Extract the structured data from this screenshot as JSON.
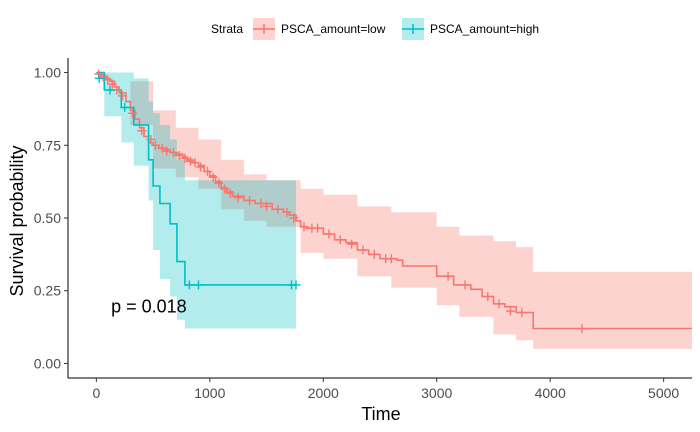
{
  "chart_data": {
    "type": "line",
    "subtype": "kaplan-meier",
    "title": "",
    "xlabel": "Time",
    "ylabel": "Survival probability",
    "xlim": [
      -250,
      5250
    ],
    "ylim": [
      -0.05,
      1.05
    ],
    "xticks": [
      0,
      1000,
      2000,
      3000,
      4000,
      5000
    ],
    "yticks": [
      0.0,
      0.25,
      0.5,
      0.75,
      1.0
    ],
    "ytick_labels": [
      "0.00",
      "0.25",
      "0.50",
      "0.75",
      "1.00"
    ],
    "grid": false,
    "legend": {
      "title": "Strata",
      "position": "top"
    },
    "annotations": [
      {
        "text": "p = 0.018",
        "x": 130,
        "y": 0.195
      }
    ],
    "series": [
      {
        "name": "PSCA_amount=low",
        "color": "#F8766D",
        "fill": "#F8766D",
        "fill_opacity": 0.32,
        "steps": [
          [
            0,
            1.0
          ],
          [
            40,
            0.99
          ],
          [
            80,
            0.98
          ],
          [
            120,
            0.97
          ],
          [
            160,
            0.95
          ],
          [
            200,
            0.93
          ],
          [
            260,
            0.9
          ],
          [
            300,
            0.87
          ],
          [
            340,
            0.84
          ],
          [
            380,
            0.81
          ],
          [
            420,
            0.78
          ],
          [
            460,
            0.76
          ],
          [
            500,
            0.75
          ],
          [
            550,
            0.74
          ],
          [
            600,
            0.735
          ],
          [
            650,
            0.725
          ],
          [
            700,
            0.72
          ],
          [
            760,
            0.71
          ],
          [
            800,
            0.7
          ],
          [
            850,
            0.69
          ],
          [
            900,
            0.68
          ],
          [
            950,
            0.66
          ],
          [
            1000,
            0.645
          ],
          [
            1050,
            0.625
          ],
          [
            1100,
            0.605
          ],
          [
            1150,
            0.59
          ],
          [
            1200,
            0.575
          ],
          [
            1300,
            0.56
          ],
          [
            1400,
            0.55
          ],
          [
            1550,
            0.53
          ],
          [
            1650,
            0.52
          ],
          [
            1700,
            0.51
          ],
          [
            1760,
            0.49
          ],
          [
            1800,
            0.47
          ],
          [
            1850,
            0.465
          ],
          [
            2000,
            0.445
          ],
          [
            2100,
            0.425
          ],
          [
            2200,
            0.415
          ],
          [
            2300,
            0.39
          ],
          [
            2400,
            0.375
          ],
          [
            2500,
            0.36
          ],
          [
            2650,
            0.355
          ],
          [
            2700,
            0.335
          ],
          [
            3000,
            0.3
          ],
          [
            3150,
            0.27
          ],
          [
            3300,
            0.255
          ],
          [
            3400,
            0.23
          ],
          [
            3500,
            0.205
          ],
          [
            3600,
            0.195
          ],
          [
            3700,
            0.175
          ],
          [
            3850,
            0.12
          ],
          [
            5250,
            0.12
          ]
        ],
        "upper": [
          [
            0,
            1.0
          ],
          [
            300,
            0.97
          ],
          [
            500,
            0.87
          ],
          [
            700,
            0.81
          ],
          [
            900,
            0.77
          ],
          [
            1100,
            0.7
          ],
          [
            1300,
            0.65
          ],
          [
            1500,
            0.63
          ],
          [
            1800,
            0.6
          ],
          [
            2000,
            0.58
          ],
          [
            2300,
            0.54
          ],
          [
            2600,
            0.52
          ],
          [
            3000,
            0.47
          ],
          [
            3200,
            0.44
          ],
          [
            3500,
            0.42
          ],
          [
            3700,
            0.4
          ],
          [
            3850,
            0.315
          ],
          [
            5250,
            0.315
          ]
        ],
        "lower": [
          [
            0,
            1.0
          ],
          [
            300,
            0.82
          ],
          [
            500,
            0.67
          ],
          [
            700,
            0.64
          ],
          [
            900,
            0.6
          ],
          [
            1100,
            0.53
          ],
          [
            1300,
            0.49
          ],
          [
            1500,
            0.47
          ],
          [
            1800,
            0.38
          ],
          [
            2000,
            0.36
          ],
          [
            2300,
            0.3
          ],
          [
            2600,
            0.26
          ],
          [
            3000,
            0.2
          ],
          [
            3200,
            0.16
          ],
          [
            3500,
            0.1
          ],
          [
            3700,
            0.08
          ],
          [
            3850,
            0.05
          ],
          [
            5250,
            0.05
          ]
        ],
        "censored": [
          [
            20,
            0.995
          ],
          [
            60,
            0.985
          ],
          [
            100,
            0.975
          ],
          [
            140,
            0.96
          ],
          [
            180,
            0.94
          ],
          [
            230,
            0.92
          ],
          [
            320,
            0.86
          ],
          [
            400,
            0.8
          ],
          [
            480,
            0.77
          ],
          [
            520,
            0.75
          ],
          [
            580,
            0.74
          ],
          [
            620,
            0.73
          ],
          [
            680,
            0.725
          ],
          [
            730,
            0.715
          ],
          [
            780,
            0.705
          ],
          [
            830,
            0.695
          ],
          [
            870,
            0.69
          ],
          [
            920,
            0.675
          ],
          [
            980,
            0.66
          ],
          [
            1030,
            0.64
          ],
          [
            1080,
            0.62
          ],
          [
            1130,
            0.6
          ],
          [
            1180,
            0.585
          ],
          [
            1250,
            0.57
          ],
          [
            1350,
            0.56
          ],
          [
            1450,
            0.55
          ],
          [
            1500,
            0.54
          ],
          [
            1600,
            0.53
          ],
          [
            1680,
            0.52
          ],
          [
            1740,
            0.5
          ],
          [
            1830,
            0.47
          ],
          [
            1900,
            0.465
          ],
          [
            1950,
            0.465
          ],
          [
            2050,
            0.445
          ],
          [
            2150,
            0.425
          ],
          [
            2250,
            0.41
          ],
          [
            2350,
            0.39
          ],
          [
            2450,
            0.375
          ],
          [
            2550,
            0.36
          ],
          [
            2600,
            0.36
          ],
          [
            3100,
            0.3
          ],
          [
            3250,
            0.27
          ],
          [
            3450,
            0.23
          ],
          [
            3550,
            0.205
          ],
          [
            3650,
            0.18
          ],
          [
            3750,
            0.175
          ],
          [
            4280,
            0.12
          ]
        ]
      },
      {
        "name": "PSCA_amount=high",
        "color": "#00BFC4",
        "fill": "#00BFC4",
        "fill_opacity": 0.3,
        "steps": [
          [
            0,
            1.0
          ],
          [
            70,
            0.94
          ],
          [
            160,
            0.94
          ],
          [
            220,
            0.88
          ],
          [
            330,
            0.82
          ],
          [
            460,
            0.7
          ],
          [
            500,
            0.61
          ],
          [
            560,
            0.55
          ],
          [
            650,
            0.48
          ],
          [
            710,
            0.35
          ],
          [
            780,
            0.27
          ],
          [
            1760,
            0.27
          ]
        ],
        "upper": [
          [
            0,
            1.0
          ],
          [
            220,
            1.0
          ],
          [
            330,
            0.98
          ],
          [
            460,
            0.9
          ],
          [
            500,
            0.86
          ],
          [
            560,
            0.82
          ],
          [
            650,
            0.77
          ],
          [
            710,
            0.7
          ],
          [
            780,
            0.63
          ],
          [
            1760,
            0.63
          ]
        ],
        "lower": [
          [
            0,
            1.0
          ],
          [
            70,
            0.85
          ],
          [
            220,
            0.76
          ],
          [
            330,
            0.68
          ],
          [
            460,
            0.56
          ],
          [
            500,
            0.39
          ],
          [
            560,
            0.29
          ],
          [
            650,
            0.23
          ],
          [
            710,
            0.15
          ],
          [
            780,
            0.12
          ],
          [
            1760,
            0.12
          ]
        ],
        "censored": [
          [
            25,
            0.98
          ],
          [
            120,
            0.94
          ],
          [
            250,
            0.88
          ],
          [
            820,
            0.27
          ],
          [
            900,
            0.27
          ],
          [
            1720,
            0.27
          ],
          [
            1760,
            0.27
          ]
        ]
      }
    ]
  }
}
